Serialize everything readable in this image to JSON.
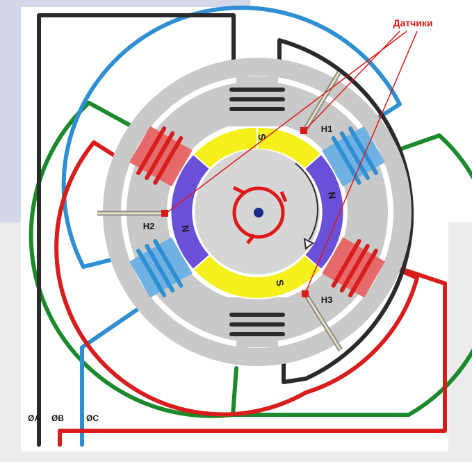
{
  "diagram": {
    "sensors_label": "Датчики",
    "sensor_labels": [
      "H1",
      "H2",
      "H3"
    ],
    "phase_labels": [
      "ØA",
      "ØB",
      "ØC"
    ],
    "rotor_pole_labels": [
      "S",
      "N",
      "S",
      "N"
    ],
    "colors": {
      "background_left": "#d4d6ea",
      "background_lower": "#e5e5e5",
      "stator": "#c9c9c9",
      "rotor_core": "#d6d6d6",
      "pole_south": "#f5ef1c",
      "pole_north": "#6a4fd9",
      "phase_a_wire": "#2a2a2a",
      "phase_b_wire": "#d91c1c",
      "phase_c_wire": "#2e8fd2",
      "green_wire": "#1c8a2c",
      "tooth_red": "#e76a6a",
      "tooth_blue": "#6fb1e3",
      "sensor_red": "#e01818",
      "label_red": "#e01818"
    }
  }
}
